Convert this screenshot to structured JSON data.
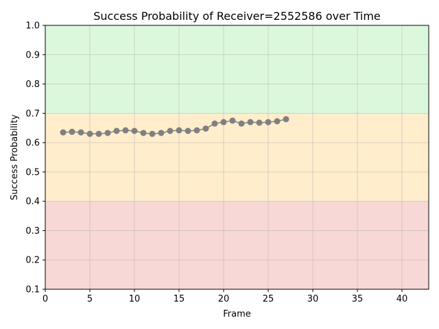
{
  "chart_data": {
    "type": "line",
    "title": "Success Probability of Receiver=2552586 over Time",
    "xlabel": "Frame",
    "ylabel": "Success Probability",
    "xlim": [
      0,
      43
    ],
    "ylim": [
      0.1,
      1.0
    ],
    "xticks": [
      0,
      5,
      10,
      15,
      20,
      25,
      30,
      35,
      40
    ],
    "xtick_labels": [
      "0",
      "5",
      "10",
      "15",
      "20",
      "25",
      "30",
      "35",
      "40"
    ],
    "yticks": [
      0.1,
      0.2,
      0.3,
      0.4,
      0.5,
      0.6,
      0.7,
      0.8,
      0.9,
      1.0
    ],
    "ytick_labels": [
      "0.1",
      "0.2",
      "0.3",
      "0.4",
      "0.5",
      "0.6",
      "0.7",
      "0.8",
      "0.9",
      "1.0"
    ],
    "grid": true,
    "bands": [
      {
        "from": 0.1,
        "to": 0.4,
        "color": "#f8d7d7"
      },
      {
        "from": 0.4,
        "to": 0.7,
        "color": "#ffedcc"
      },
      {
        "from": 0.7,
        "to": 1.0,
        "color": "#dcf8dc"
      }
    ],
    "series": [
      {
        "color": "#808080",
        "x": [
          2,
          3,
          4,
          5,
          6,
          7,
          8,
          9,
          10,
          11,
          12,
          13,
          14,
          15,
          16,
          17,
          18,
          19,
          20,
          21,
          22,
          23,
          24,
          25,
          26,
          27
        ],
        "y": [
          0.635,
          0.637,
          0.635,
          0.63,
          0.63,
          0.633,
          0.64,
          0.642,
          0.64,
          0.633,
          0.63,
          0.633,
          0.64,
          0.642,
          0.64,
          0.642,
          0.648,
          0.665,
          0.67,
          0.675,
          0.665,
          0.67,
          0.668,
          0.67,
          0.673,
          0.68
        ]
      }
    ]
  }
}
